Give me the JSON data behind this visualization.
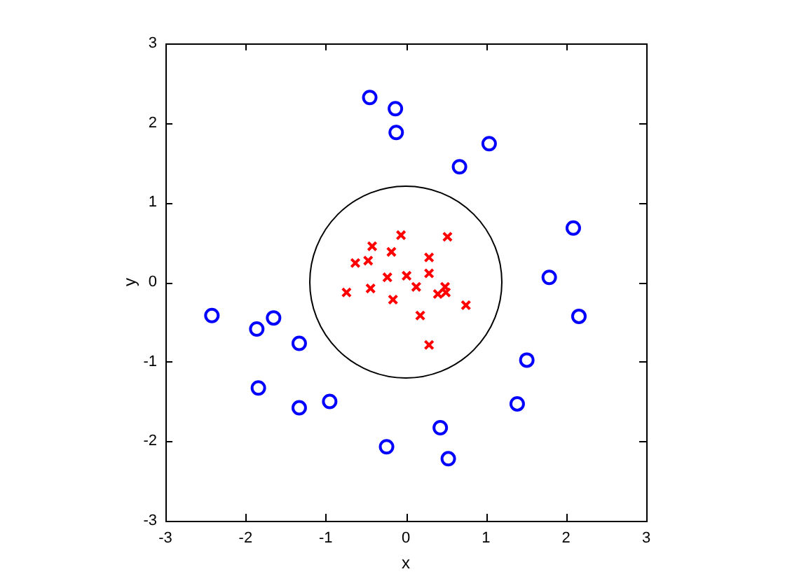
{
  "chart_data": {
    "type": "scatter",
    "xlabel": "x",
    "ylabel": "y",
    "xlim": [
      -3,
      3
    ],
    "ylim": [
      -3,
      3
    ],
    "xticks": [
      -3,
      -2,
      -1,
      0,
      1,
      2,
      3
    ],
    "yticks": [
      -3,
      -2,
      -1,
      0,
      1,
      2,
      3
    ],
    "legend": false,
    "series": [
      {
        "type": "scatter",
        "color": "#0000ff",
        "marker": "circle",
        "x": [
          -0.45,
          -0.13,
          -0.12,
          1.04,
          0.67,
          2.09,
          1.79,
          2.16,
          1.51,
          1.39,
          0.43,
          0.53,
          -2.42,
          -1.86,
          -1.65,
          -1.33,
          -1.84,
          -1.33,
          -0.95,
          -0.24
        ],
        "values": [
          2.32,
          2.18,
          1.88,
          1.74,
          1.45,
          0.68,
          0.06,
          -0.43,
          -0.98,
          -1.53,
          -1.83,
          -2.22,
          -0.42,
          -0.59,
          -0.45,
          -0.77,
          -1.33,
          -1.58,
          -1.5,
          -2.07
        ]
      },
      {
        "type": "scatter",
        "color": "#ff0000",
        "marker": "cross",
        "x": [
          -0.06,
          0.52,
          -0.42,
          -0.18,
          -0.63,
          -0.47,
          0.29,
          0.29,
          0.01,
          -0.23,
          -0.74,
          -0.44,
          0.13,
          -0.16,
          0.4,
          0.49,
          0.5,
          0.75,
          0.18,
          0.29
        ],
        "values": [
          0.59,
          0.57,
          0.45,
          0.38,
          0.24,
          0.27,
          0.31,
          0.11,
          0.08,
          0.06,
          -0.13,
          -0.08,
          -0.06,
          -0.22,
          -0.15,
          -0.06,
          -0.13,
          -0.29,
          -0.42,
          -0.79
        ]
      }
    ]
  }
}
